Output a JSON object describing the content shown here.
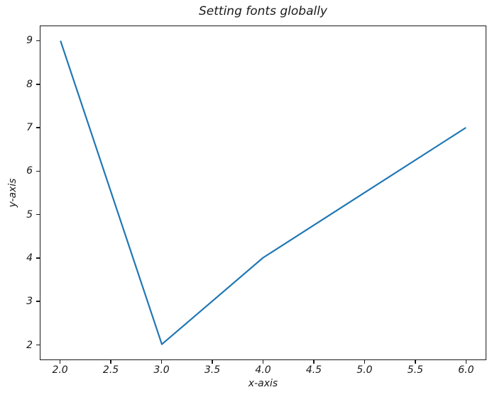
{
  "chart_data": {
    "type": "line",
    "title": "Setting fonts globally",
    "xlabel": "x-axis",
    "ylabel": "y-axis",
    "x": [
      2,
      3,
      4,
      6
    ],
    "y": [
      9,
      2,
      4,
      7
    ],
    "xlim": [
      1.8,
      6.2
    ],
    "ylim": [
      1.65,
      9.35
    ],
    "xticks": [
      {
        "value": 2.0,
        "label": "2.0"
      },
      {
        "value": 2.5,
        "label": "2.5"
      },
      {
        "value": 3.0,
        "label": "3.0"
      },
      {
        "value": 3.5,
        "label": "3.5"
      },
      {
        "value": 4.0,
        "label": "4.0"
      },
      {
        "value": 4.5,
        "label": "4.5"
      },
      {
        "value": 5.0,
        "label": "5.0"
      },
      {
        "value": 5.5,
        "label": "5.5"
      },
      {
        "value": 6.0,
        "label": "6.0"
      }
    ],
    "yticks": [
      {
        "value": 2,
        "label": "2"
      },
      {
        "value": 3,
        "label": "3"
      },
      {
        "value": 4,
        "label": "4"
      },
      {
        "value": 5,
        "label": "5"
      },
      {
        "value": 6,
        "label": "6"
      },
      {
        "value": 7,
        "label": "7"
      },
      {
        "value": 8,
        "label": "8"
      },
      {
        "value": 9,
        "label": "9"
      }
    ],
    "grid": false,
    "legend": "none",
    "line_color": "#1f77b4",
    "axis_color": "#1a1a1a",
    "background_color": "#ffffff",
    "font_style": "italic"
  }
}
